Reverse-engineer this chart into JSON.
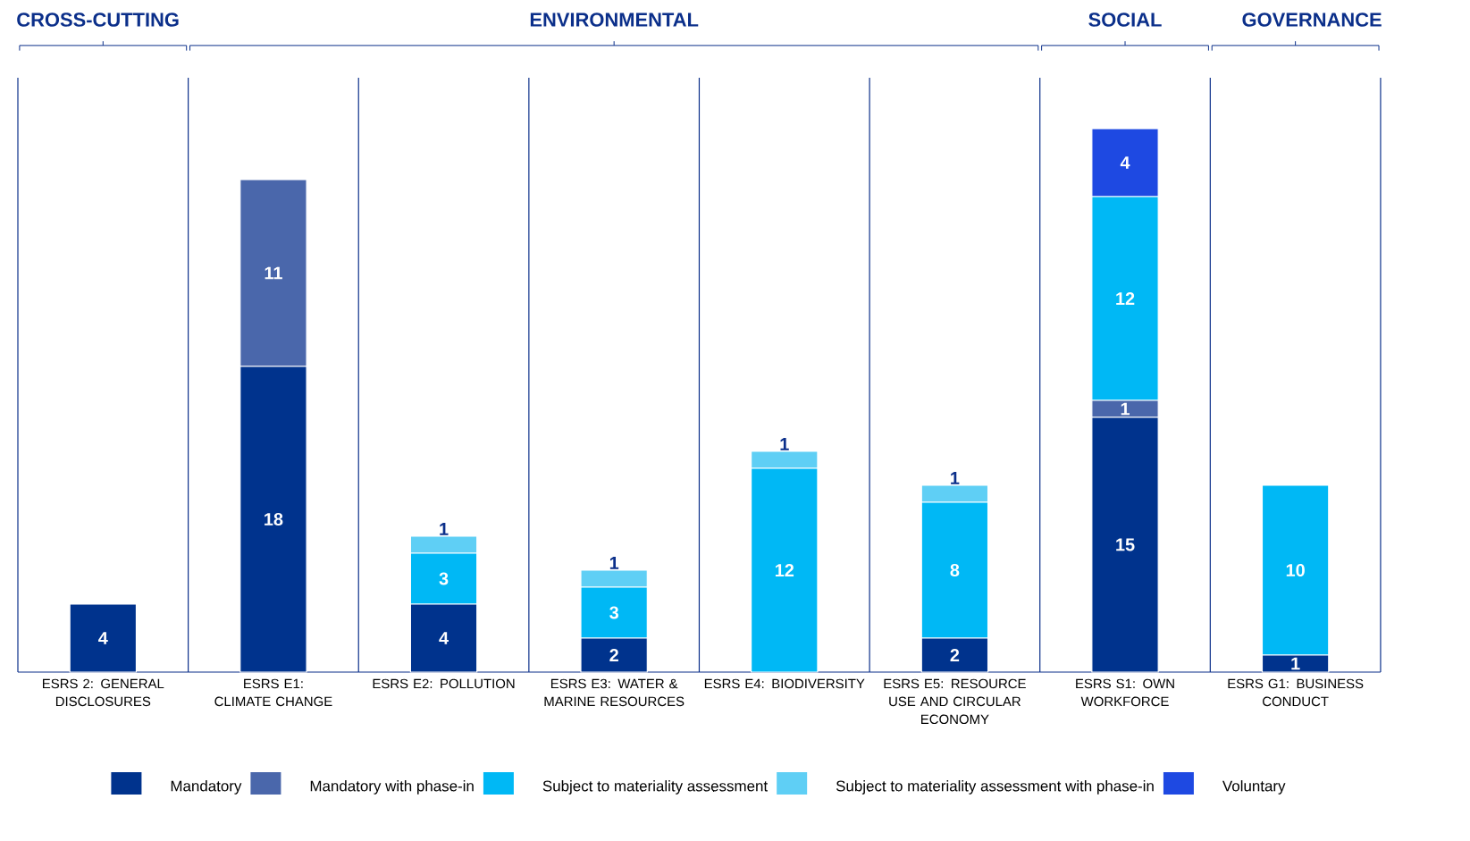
{
  "chart_data": {
    "type": "bar",
    "stacked": true,
    "data_labels": true,
    "legend": "bottom",
    "annotations": [
      "CROSS-CUTTING",
      "ENVIRONMENTAL",
      "SOCIAL",
      "GOVERNANCE"
    ],
    "categories": [
      "ESRS 2: GENERAL DISCLOSURES",
      "ESRS E1: CLIMATE CHANGE",
      "ESRS E2: POLLUTION",
      "ESRS E3: WATER & MARINE RESOURCES",
      "ESRS E4: BIODIVERSITY",
      "ESRS E5: RESOURCE USE AND CIRCULAR ECONOMY",
      "ESRS S1: OWN WORKFORCE",
      "ESRS G1: BUSINESS CONDUCT"
    ],
    "series": [
      {
        "name": "Mandatory",
        "color": "#00338d",
        "values": [
          4,
          18,
          4,
          2,
          null,
          2,
          15,
          1
        ]
      },
      {
        "name": "Mandatory with phase-in",
        "color": "#4a67ab",
        "values": [
          null,
          11,
          null,
          null,
          null,
          null,
          1,
          null
        ]
      },
      {
        "name": "Subject to materiality assessment",
        "color": "#00b8f5",
        "values": [
          null,
          null,
          3,
          3,
          12,
          8,
          12,
          10
        ]
      },
      {
        "name": "Subject to materiality assessment with phase-in",
        "color": "#5fcff5",
        "values": [
          null,
          null,
          1,
          1,
          1,
          1,
          null,
          null
        ]
      },
      {
        "name": "Voluntary",
        "color": "#1e49e2",
        "values": [
          null,
          null,
          null,
          null,
          null,
          null,
          4,
          null
        ]
      }
    ]
  }
}
